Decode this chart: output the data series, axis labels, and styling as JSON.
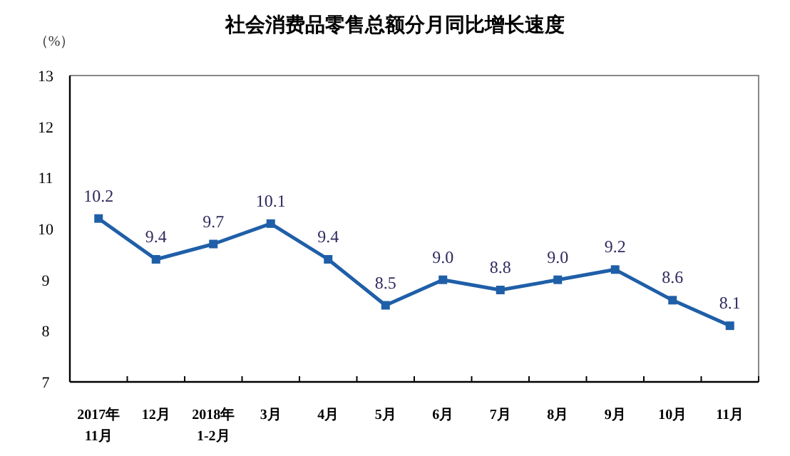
{
  "chart_data": {
    "type": "line",
    "title": "社会消费品零售总额分月同比增长速度",
    "ylabel": "（%）",
    "categories": [
      "2017年\n11月",
      "12月",
      "2018年\n1-2月",
      "3月",
      "4月",
      "5月",
      "6月",
      "7月",
      "8月",
      "9月",
      "10月",
      "11月"
    ],
    "series": [
      {
        "color": "#1f5fa8",
        "values": [
          10.2,
          9.4,
          9.7,
          10.1,
          9.4,
          8.5,
          9.0,
          8.8,
          9.0,
          9.2,
          8.6,
          8.1
        ],
        "value_labels": [
          "10.2",
          "9.4",
          "9.7",
          "10.1",
          "9.4",
          "8.5",
          "9.0",
          "8.8",
          "9.0",
          "9.2",
          "8.6",
          "8.1"
        ]
      }
    ],
    "ylim": [
      7,
      13
    ],
    "yticks": [
      7,
      8,
      9,
      10,
      11,
      12,
      13
    ],
    "marker": "square",
    "line_style": "solid",
    "grid": false
  }
}
